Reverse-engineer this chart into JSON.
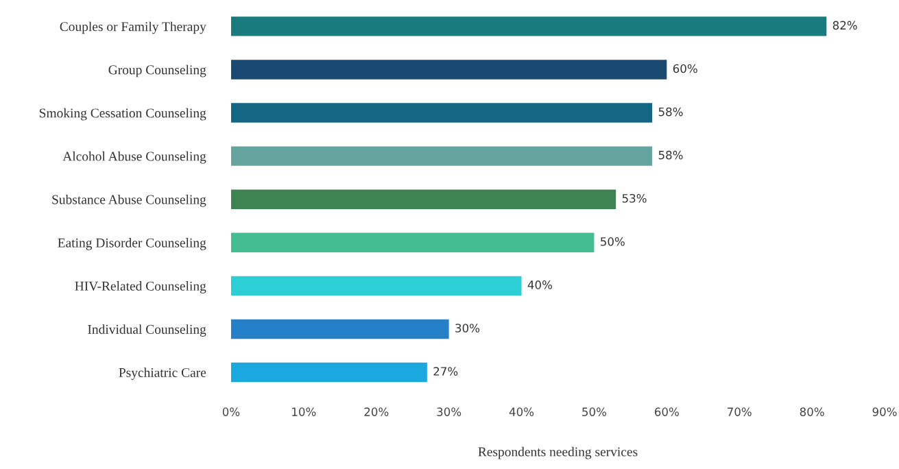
{
  "chart_data": {
    "type": "bar",
    "orientation": "horizontal",
    "xlabel": "Respondents needing services",
    "categories": [
      "Couples or Family Therapy",
      "Group Counseling",
      "Smoking Cessation Counseling",
      "Alcohol Abuse Counseling",
      "Substance Abuse Counseling",
      "Eating Disorder Counseling",
      "HIV-Related Counseling",
      "Individual Counseling",
      "Psychiatric Care"
    ],
    "values": [
      82,
      60,
      58,
      58,
      53,
      50,
      40,
      30,
      27
    ],
    "value_labels": [
      "82%",
      "60%",
      "58%",
      "58%",
      "53%",
      "50%",
      "40%",
      "30%",
      "27%"
    ],
    "colors": [
      "#1a7b7e",
      "#1a4a72",
      "#136784",
      "#66a59f",
      "#3e8452",
      "#44bd93",
      "#2dcfd6",
      "#2580c8",
      "#1aa8df"
    ],
    "xlim": [
      0,
      90
    ],
    "xticks": [
      {
        "value": 0,
        "label": "0%"
      },
      {
        "value": 10,
        "label": "10%"
      },
      {
        "value": 20,
        "label": "20%"
      },
      {
        "value": 30,
        "label": "30%"
      },
      {
        "value": 40,
        "label": "40%"
      },
      {
        "value": 50,
        "label": "50%"
      },
      {
        "value": 60,
        "label": "60%"
      },
      {
        "value": 70,
        "label": "70%"
      },
      {
        "value": 80,
        "label": "80%"
      },
      {
        "value": 90,
        "label": "90%"
      }
    ],
    "grid": false,
    "legend": false
  }
}
